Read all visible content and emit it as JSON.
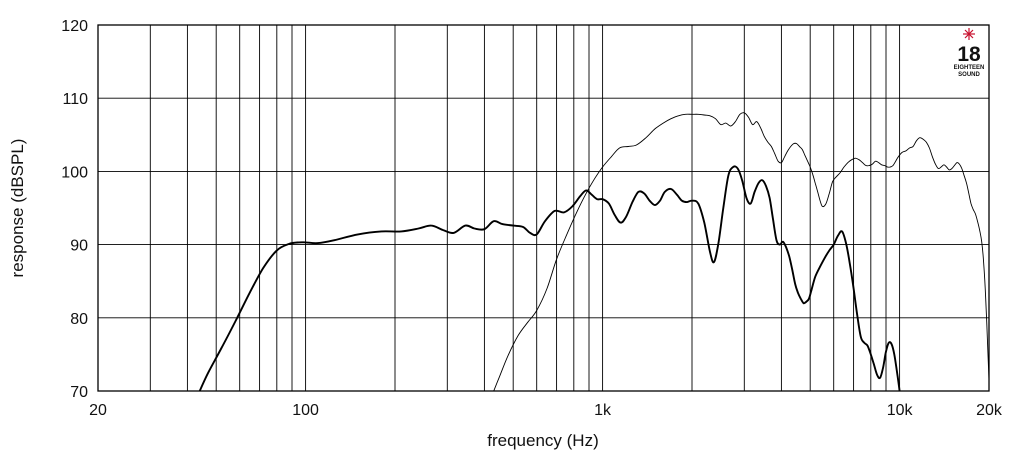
{
  "chart_data": {
    "type": "line",
    "title": "",
    "xlabel": "frequency (Hz)",
    "ylabel": "response (dBSPL)",
    "x_scale": "log",
    "xlim": [
      20,
      20000
    ],
    "ylim": [
      70,
      120
    ],
    "grid": true,
    "x_tick_labels": [
      {
        "value": 20,
        "label": "20"
      },
      {
        "value": 100,
        "label": "100"
      },
      {
        "value": 1000,
        "label": "1k"
      },
      {
        "value": 10000,
        "label": "10k"
      },
      {
        "value": 20000,
        "label": "20k"
      }
    ],
    "y_ticks": [
      70,
      80,
      90,
      100,
      110,
      120
    ],
    "x_gridlines": [
      20,
      30,
      40,
      50,
      60,
      70,
      80,
      90,
      100,
      200,
      300,
      400,
      500,
      600,
      700,
      800,
      900,
      1000,
      2000,
      3000,
      4000,
      5000,
      6000,
      7000,
      8000,
      9000,
      10000,
      20000
    ],
    "series": [
      {
        "color": "#000000",
        "style": "thick",
        "x": [
          44,
          47,
          52,
          58,
          65,
          72,
          80,
          88,
          95,
          100,
          110,
          125,
          150,
          180,
          210,
          240,
          265,
          290,
          315,
          345,
          370,
          400,
          430,
          460,
          500,
          540,
          570,
          600,
          640,
          690,
          740,
          790,
          840,
          880,
          920,
          960,
          1000,
          1050,
          1100,
          1150,
          1200,
          1260,
          1320,
          1380,
          1440,
          1500,
          1560,
          1620,
          1700,
          1780,
          1850,
          1920,
          2000,
          2100,
          2200,
          2300,
          2370,
          2450,
          2550,
          2650,
          2750,
          2850,
          2950,
          3050,
          3150,
          3250,
          3350,
          3450,
          3550,
          3650,
          3750,
          3850,
          3950,
          4050,
          4150,
          4250,
          4350,
          4450,
          4550,
          4650,
          4750,
          4850,
          4950,
          5050,
          5200,
          5400,
          5600,
          5800,
          6000,
          6200,
          6400,
          6600,
          6800,
          7000,
          7200,
          7400,
          7600,
          7800,
          8000,
          8200,
          8400,
          8600,
          8800,
          9000,
          9200,
          9400,
          9600,
          9800,
          10000
        ],
        "y": [
          70,
          72.5,
          75.8,
          79.5,
          83.5,
          86.8,
          89.2,
          90.1,
          90.3,
          90.3,
          90.2,
          90.6,
          91.4,
          91.8,
          91.8,
          92.2,
          92.6,
          92.0,
          91.6,
          92.6,
          92.2,
          92.1,
          93.2,
          92.8,
          92.6,
          92.4,
          91.6,
          91.4,
          93.2,
          94.6,
          94.4,
          95.2,
          96.6,
          97.4,
          96.8,
          96.2,
          96.2,
          95.6,
          94.0,
          93.0,
          93.8,
          95.8,
          97.2,
          97.0,
          96.0,
          95.4,
          96.0,
          97.2,
          97.6,
          96.8,
          96.0,
          95.8,
          96.0,
          95.6,
          93.0,
          89.0,
          87.6,
          90.0,
          95.0,
          99.4,
          100.6,
          100.4,
          98.8,
          96.4,
          95.6,
          97.2,
          98.4,
          98.8,
          98.0,
          96.4,
          93.4,
          90.6,
          90.0,
          90.4,
          89.6,
          88.4,
          86.6,
          84.6,
          83.4,
          82.6,
          82.0,
          82.2,
          82.6,
          83.8,
          85.6,
          87.0,
          88.2,
          89.2,
          90.0,
          91.2,
          91.8,
          90.2,
          87.4,
          84.0,
          80.4,
          77.4,
          76.6,
          76.2,
          75.0,
          73.6,
          72.2,
          71.8,
          73.2,
          75.4,
          76.6,
          76.4,
          75.0,
          72.6,
          70.0
        ]
      },
      {
        "color": "#000000",
        "style": "thin",
        "x": [
          430,
          450,
          480,
          520,
          560,
          600,
          650,
          700,
          760,
          820,
          880,
          940,
          1000,
          1070,
          1140,
          1220,
          1300,
          1400,
          1500,
          1600,
          1700,
          1800,
          1900,
          2000,
          2100,
          2200,
          2300,
          2400,
          2500,
          2600,
          2700,
          2800,
          2900,
          3000,
          3100,
          3200,
          3300,
          3400,
          3500,
          3600,
          3700,
          3800,
          3900,
          4000,
          4100,
          4200,
          4300,
          4400,
          4500,
          4600,
          4700,
          4800,
          4900,
          5000,
          5100,
          5200,
          5300,
          5400,
          5500,
          5650,
          5800,
          5950,
          6100,
          6300,
          6500,
          6700,
          6900,
          7100,
          7300,
          7500,
          7700,
          7900,
          8100,
          8300,
          8500,
          8700,
          8900,
          9100,
          9300,
          9500,
          9700,
          9900,
          10200,
          10500,
          10800,
          11100,
          11400,
          11700,
          12000,
          12300,
          12600,
          12900,
          13200,
          13500,
          13800,
          14100,
          14400,
          14700,
          15000,
          15300,
          15600,
          15900,
          16200,
          16500,
          16800,
          17100,
          17400,
          17700,
          18000,
          18300,
          18600,
          18900,
          19200,
          19500,
          19800,
          20000
        ],
        "y": [
          70,
          72.0,
          74.8,
          77.6,
          79.4,
          81.0,
          84.0,
          88.0,
          91.5,
          94.5,
          97.0,
          99.0,
          100.6,
          102.0,
          103.2,
          103.4,
          103.6,
          104.6,
          105.8,
          106.6,
          107.2,
          107.6,
          107.8,
          107.8,
          107.8,
          107.7,
          107.6,
          107.2,
          106.4,
          106.6,
          106.2,
          106.8,
          107.8,
          108.0,
          107.4,
          106.4,
          106.8,
          106.0,
          104.8,
          104.0,
          103.4,
          102.4,
          101.4,
          101.2,
          102.0,
          102.8,
          103.4,
          103.8,
          103.8,
          103.4,
          103.0,
          102.2,
          101.4,
          100.6,
          99.6,
          98.4,
          97.2,
          96.0,
          95.2,
          95.6,
          97.0,
          98.6,
          99.2,
          99.8,
          100.6,
          101.2,
          101.6,
          101.8,
          101.6,
          101.2,
          100.8,
          100.8,
          101.0,
          101.4,
          101.2,
          100.9,
          100.8,
          100.6,
          100.6,
          100.8,
          101.4,
          102.0,
          102.6,
          102.8,
          103.2,
          103.4,
          104.2,
          104.6,
          104.4,
          104.0,
          103.2,
          102.0,
          101.0,
          100.4,
          100.6,
          100.9,
          100.6,
          100.2,
          100.4,
          100.8,
          101.2,
          101.0,
          100.4,
          99.4,
          98.4,
          97.0,
          95.6,
          94.8,
          94.2,
          93.2,
          92.0,
          90.4,
          87.4,
          82.6,
          76.0,
          71.5
        ]
      }
    ]
  },
  "logo": {
    "number": "18",
    "line1": "EIGHTEEN",
    "line2": "SOUND",
    "accent": "#c8102e"
  }
}
